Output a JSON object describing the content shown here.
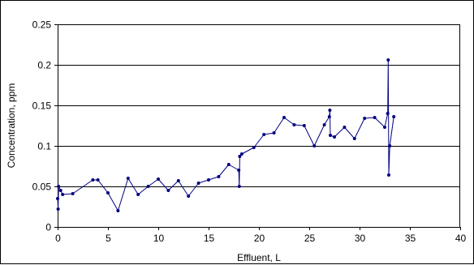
{
  "chart_data": {
    "type": "line",
    "title": "",
    "xlabel": "Effluent, L",
    "ylabel": "Concentration, ppm",
    "xlim": [
      0,
      40
    ],
    "ylim": [
      0,
      0.25
    ],
    "x_ticks": [
      0,
      5,
      10,
      15,
      20,
      25,
      30,
      35,
      40
    ],
    "x_tick_labels": [
      "0",
      "5",
      "10",
      "15",
      "20",
      "25",
      "30",
      "35",
      "40"
    ],
    "y_ticks": [
      0,
      0.05,
      0.1,
      0.15,
      0.2,
      0.25
    ],
    "y_tick_labels": [
      "0",
      "0.05",
      "0.1",
      "0.15",
      "0.2",
      "0.25"
    ],
    "grid": "horizontal",
    "legend": "none",
    "line_color": "#000080",
    "grid_color": "#000000",
    "series": [
      {
        "points": [
          [
            0.0,
            0.035
          ],
          [
            0.05,
            0.022
          ],
          [
            0.1,
            0.05
          ],
          [
            0.3,
            0.045
          ],
          [
            0.5,
            0.04
          ],
          [
            1.5,
            0.041
          ],
          [
            3.5,
            0.058
          ],
          [
            4.0,
            0.058
          ],
          [
            5.0,
            0.042
          ],
          [
            6.0,
            0.02
          ],
          [
            7.0,
            0.06
          ],
          [
            8.0,
            0.04
          ],
          [
            9.0,
            0.05
          ],
          [
            10.0,
            0.059
          ],
          [
            11.0,
            0.045
          ],
          [
            12.0,
            0.057
          ],
          [
            13.0,
            0.038
          ],
          [
            14.0,
            0.054
          ],
          [
            15.0,
            0.058
          ],
          [
            16.0,
            0.062
          ],
          [
            17.0,
            0.077
          ],
          [
            18.0,
            0.07
          ],
          [
            18.05,
            0.05
          ],
          [
            18.1,
            0.087
          ],
          [
            18.3,
            0.09
          ],
          [
            19.5,
            0.098
          ],
          [
            20.5,
            0.114
          ],
          [
            21.5,
            0.116
          ],
          [
            22.5,
            0.135
          ],
          [
            23.5,
            0.126
          ],
          [
            24.5,
            0.125
          ],
          [
            25.5,
            0.1
          ],
          [
            26.5,
            0.126
          ],
          [
            27.0,
            0.136
          ],
          [
            27.05,
            0.144
          ],
          [
            27.1,
            0.113
          ],
          [
            27.5,
            0.111
          ],
          [
            28.5,
            0.123
          ],
          [
            29.5,
            0.109
          ],
          [
            30.5,
            0.134
          ],
          [
            31.5,
            0.135
          ],
          [
            32.5,
            0.123
          ],
          [
            32.8,
            0.14
          ],
          [
            32.85,
            0.206
          ],
          [
            32.9,
            0.064
          ],
          [
            33.0,
            0.1
          ],
          [
            33.4,
            0.136
          ]
        ]
      }
    ]
  }
}
